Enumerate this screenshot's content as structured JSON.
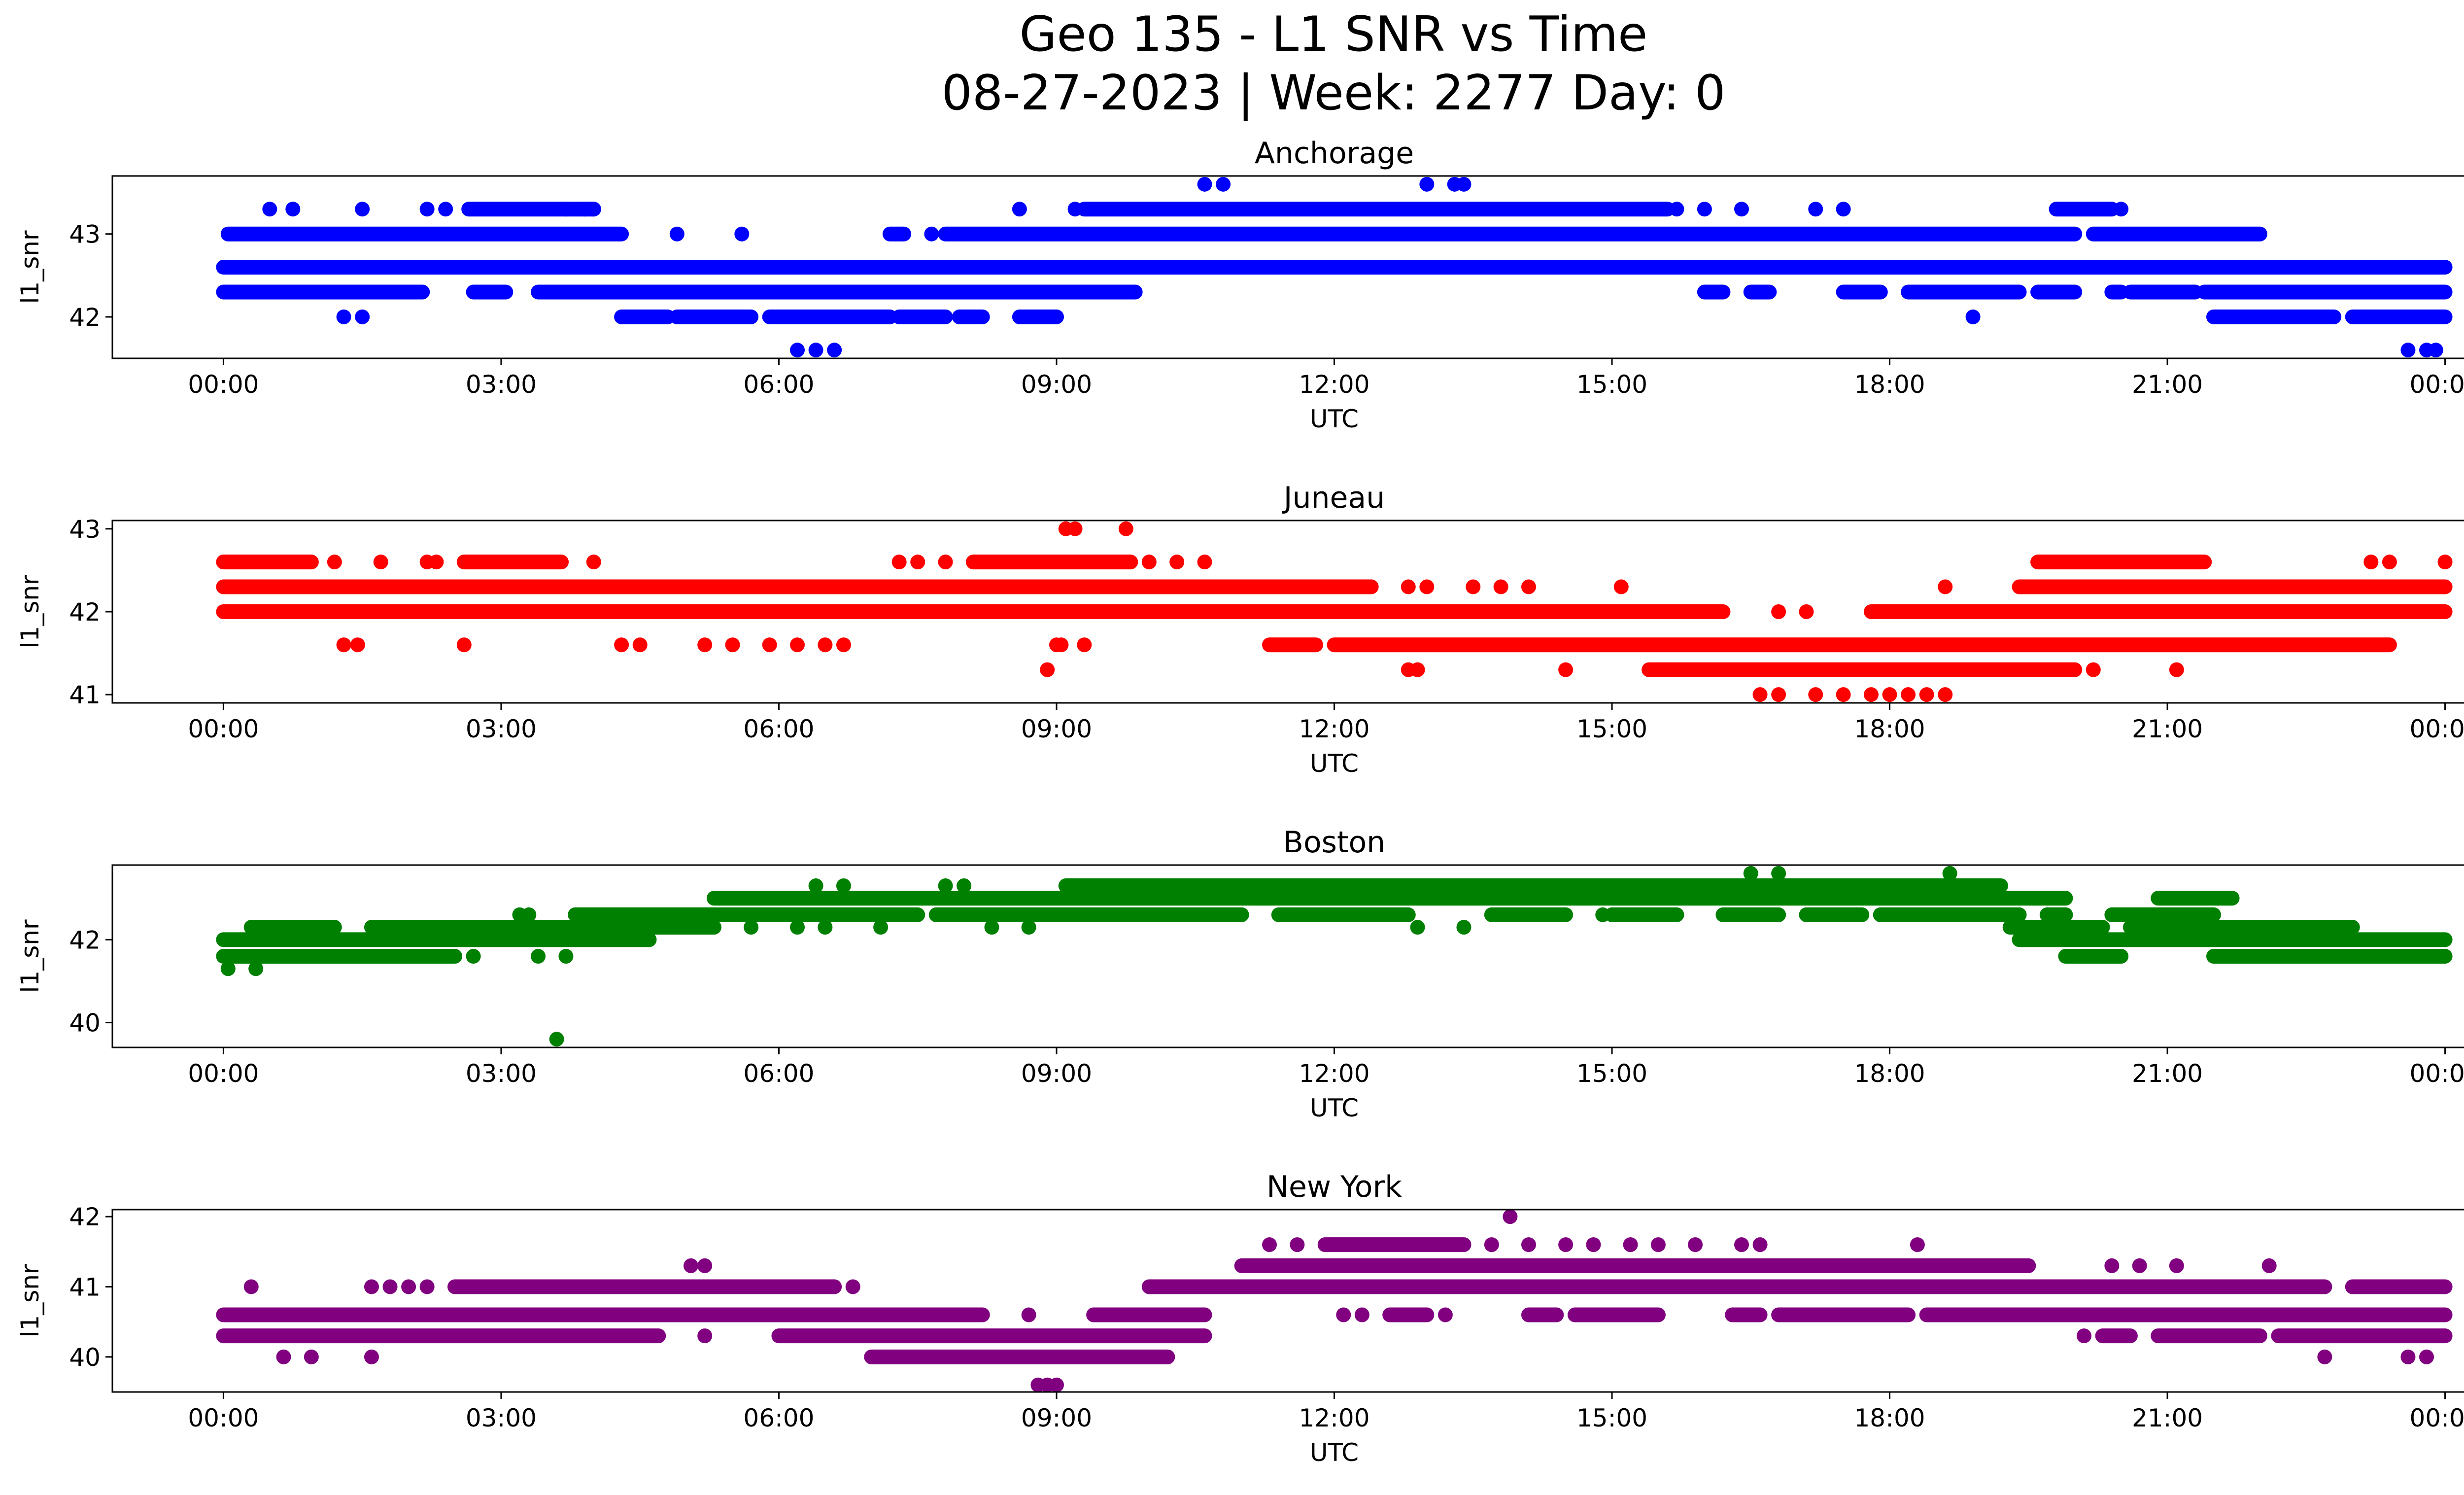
{
  "figure": {
    "title_line1": "Geo 135 - L1 SNR vs Time",
    "title_line2": "08-27-2023 | Week: 2277 Day: 0"
  },
  "chart_data": [
    {
      "type": "scatter",
      "title": "Anchorage",
      "xlabel": "UTC",
      "ylabel": "l1_snr",
      "color": "#0000ff",
      "x_unit": "hours",
      "xlim": [
        -1.2,
        25.2
      ],
      "ylim": [
        41.5,
        43.7
      ],
      "xticks": [
        "00:00",
        "03:00",
        "06:00",
        "09:00",
        "12:00",
        "15:00",
        "18:00",
        "21:00",
        "00:00"
      ],
      "yticks": [
        42,
        43
      ],
      "bands": [
        {
          "y": 42.3,
          "x": [
            [
              0,
              2.15
            ],
            [
              2.7,
              3.05
            ],
            [
              3.4,
              9.85
            ],
            [
              16.0,
              16.2
            ],
            [
              16.5,
              16.7
            ],
            [
              17.5,
              17.9
            ],
            [
              18.2,
              19.4
            ],
            [
              19.6,
              20.0
            ],
            [
              20.4,
              20.5
            ],
            [
              20.6,
              21.3
            ],
            [
              21.4,
              24.0
            ]
          ]
        },
        {
          "y": 42.6,
          "x": [
            [
              0,
              24.0
            ]
          ]
        },
        {
          "y": 43.0,
          "x": [
            [
              0.05,
              4.3
            ],
            [
              7.2,
              7.35
            ],
            [
              7.8,
              20.0
            ],
            [
              20.2,
              22.0
            ]
          ]
        },
        {
          "y": 43.3,
          "x": [
            [
              2.65,
              4.0
            ],
            [
              9.3,
              15.6
            ],
            [
              19.8,
              20.4
            ]
          ]
        },
        {
          "y": 42.0,
          "x": [
            [
              4.3,
              4.8
            ],
            [
              4.9,
              5.7
            ],
            [
              5.9,
              7.2
            ],
            [
              7.3,
              7.8
            ],
            [
              7.95,
              8.2
            ],
            [
              8.6,
              9.0
            ],
            [
              21.5,
              22.8
            ],
            [
              23.0,
              24.0
            ]
          ]
        }
      ],
      "points": [
        {
          "x": 0.5,
          "y": 43.3
        },
        {
          "x": 0.75,
          "y": 43.3
        },
        {
          "x": 1.5,
          "y": 43.3
        },
        {
          "x": 2.2,
          "y": 43.3
        },
        {
          "x": 2.4,
          "y": 43.3
        },
        {
          "x": 3.7,
          "y": 43.3
        },
        {
          "x": 3.9,
          "y": 43.3
        },
        {
          "x": 4.0,
          "y": 43.3
        },
        {
          "x": 8.6,
          "y": 43.3
        },
        {
          "x": 9.2,
          "y": 43.3
        },
        {
          "x": 17.2,
          "y": 43.3
        },
        {
          "x": 17.5,
          "y": 43.3
        },
        {
          "x": 20.5,
          "y": 43.3
        },
        {
          "x": 16.0,
          "y": 43.3
        },
        {
          "x": 16.4,
          "y": 43.3
        },
        {
          "x": 10.6,
          "y": 43.6
        },
        {
          "x": 10.8,
          "y": 43.6
        },
        {
          "x": 13.0,
          "y": 43.6
        },
        {
          "x": 13.3,
          "y": 43.6
        },
        {
          "x": 13.4,
          "y": 43.6
        },
        {
          "x": 1.3,
          "y": 42.0
        },
        {
          "x": 1.5,
          "y": 42.0
        },
        {
          "x": 18.9,
          "y": 42.0
        },
        {
          "x": 6.2,
          "y": 41.6
        },
        {
          "x": 6.4,
          "y": 41.6
        },
        {
          "x": 6.6,
          "y": 41.6
        },
        {
          "x": 23.6,
          "y": 41.6
        },
        {
          "x": 23.8,
          "y": 41.6
        },
        {
          "x": 23.9,
          "y": 41.6
        },
        {
          "x": 4.9,
          "y": 43.0
        },
        {
          "x": 5.6,
          "y": 43.0
        },
        {
          "x": 7.65,
          "y": 43.0
        },
        {
          "x": 15.7,
          "y": 43.3
        },
        {
          "x": 23.2,
          "y": 42.6
        },
        {
          "x": 23.4,
          "y": 42.6
        }
      ]
    },
    {
      "type": "scatter",
      "title": "Juneau",
      "xlabel": "UTC",
      "ylabel": "l1_snr",
      "color": "#ff0000",
      "x_unit": "hours",
      "xlim": [
        -1.2,
        25.2
      ],
      "ylim": [
        40.9,
        43.1
      ],
      "xticks": [
        "00:00",
        "03:00",
        "06:00",
        "09:00",
        "12:00",
        "15:00",
        "18:00",
        "21:00",
        "00:00"
      ],
      "yticks": [
        41,
        42,
        43
      ],
      "bands": [
        {
          "y": 42.3,
          "x": [
            [
              0,
              12.4
            ],
            [
              19.4,
              24.0
            ]
          ]
        },
        {
          "y": 42.0,
          "x": [
            [
              0,
              16.2
            ],
            [
              17.8,
              24.0
            ]
          ]
        },
        {
          "y": 41.6,
          "x": [
            [
              11.3,
              11.8
            ],
            [
              12.0,
              23.4
            ]
          ]
        },
        {
          "y": 41.3,
          "x": [
            [
              15.4,
              20.0
            ]
          ]
        },
        {
          "y": 42.6,
          "x": [
            [
              0,
              0.95
            ],
            [
              2.6,
              3.65
            ],
            [
              8.1,
              9.8
            ],
            [
              19.6,
              21.4
            ]
          ]
        }
      ],
      "points": [
        {
          "x": 0.2,
          "y": 42.6
        },
        {
          "x": 1.7,
          "y": 42.6
        },
        {
          "x": 2.2,
          "y": 42.6
        },
        {
          "x": 2.3,
          "y": 42.6
        },
        {
          "x": 4.0,
          "y": 42.6
        },
        {
          "x": 7.3,
          "y": 42.6
        },
        {
          "x": 7.5,
          "y": 42.6
        },
        {
          "x": 7.8,
          "y": 42.6
        },
        {
          "x": 10.0,
          "y": 42.6
        },
        {
          "x": 10.3,
          "y": 42.6
        },
        {
          "x": 10.6,
          "y": 42.6
        },
        {
          "x": 23.2,
          "y": 42.6
        },
        {
          "x": 23.4,
          "y": 42.6
        },
        {
          "x": 24.0,
          "y": 42.6
        },
        {
          "x": 1.2,
          "y": 42.6
        },
        {
          "x": 9.1,
          "y": 43.0
        },
        {
          "x": 9.2,
          "y": 43.0
        },
        {
          "x": 9.75,
          "y": 43.0
        },
        {
          "x": 1.3,
          "y": 41.6
        },
        {
          "x": 1.45,
          "y": 41.6
        },
        {
          "x": 2.6,
          "y": 41.6
        },
        {
          "x": 4.3,
          "y": 41.6
        },
        {
          "x": 4.5,
          "y": 41.6
        },
        {
          "x": 5.2,
          "y": 41.6
        },
        {
          "x": 5.5,
          "y": 41.6
        },
        {
          "x": 5.9,
          "y": 41.6
        },
        {
          "x": 6.2,
          "y": 41.6
        },
        {
          "x": 6.5,
          "y": 41.6
        },
        {
          "x": 6.7,
          "y": 41.6
        },
        {
          "x": 9.05,
          "y": 41.6
        },
        {
          "x": 9.3,
          "y": 41.6
        },
        {
          "x": 8.9,
          "y": 41.3
        },
        {
          "x": 9.0,
          "y": 41.6
        },
        {
          "x": 12.8,
          "y": 42.3
        },
        {
          "x": 13.0,
          "y": 42.3
        },
        {
          "x": 13.5,
          "y": 42.3
        },
        {
          "x": 13.8,
          "y": 42.3
        },
        {
          "x": 14.1,
          "y": 42.3
        },
        {
          "x": 15.1,
          "y": 42.3
        },
        {
          "x": 18.6,
          "y": 42.3
        },
        {
          "x": 12.8,
          "y": 41.3
        },
        {
          "x": 12.9,
          "y": 41.3
        },
        {
          "x": 14.5,
          "y": 41.3
        },
        {
          "x": 20.2,
          "y": 41.3
        },
        {
          "x": 21.1,
          "y": 41.3
        },
        {
          "x": 16.6,
          "y": 41.0
        },
        {
          "x": 16.8,
          "y": 41.0
        },
        {
          "x": 17.2,
          "y": 41.0
        },
        {
          "x": 17.5,
          "y": 41.0
        },
        {
          "x": 17.8,
          "y": 41.0
        },
        {
          "x": 18.0,
          "y": 41.0
        },
        {
          "x": 18.2,
          "y": 41.0
        },
        {
          "x": 18.4,
          "y": 41.0
        },
        {
          "x": 18.6,
          "y": 41.0
        },
        {
          "x": 16.8,
          "y": 42.0
        },
        {
          "x": 17.1,
          "y": 42.0
        }
      ]
    },
    {
      "type": "scatter",
      "title": "Boston",
      "xlabel": "UTC",
      "ylabel": "l1_snr",
      "color": "#008000",
      "x_unit": "hours",
      "xlim": [
        -1.2,
        25.2
      ],
      "ylim": [
        39.4,
        43.8
      ],
      "xticks": [
        "00:00",
        "03:00",
        "06:00",
        "09:00",
        "12:00",
        "15:00",
        "18:00",
        "21:00",
        "00:00"
      ],
      "yticks": [
        40,
        42
      ],
      "bands": [
        {
          "y": 42.0,
          "x": [
            [
              0,
              4.6
            ],
            [
              19.4,
              24.0
            ]
          ]
        },
        {
          "y": 41.6,
          "x": [
            [
              0,
              2.5
            ],
            [
              19.9,
              20.5
            ],
            [
              21.5,
              24.0
            ]
          ]
        },
        {
          "y": 42.3,
          "x": [
            [
              0.3,
              1.2
            ],
            [
              1.6,
              5.3
            ],
            [
              19.3,
              20.3
            ],
            [
              20.6,
              23.0
            ]
          ]
        },
        {
          "y": 42.6,
          "x": [
            [
              3.8,
              7.5
            ],
            [
              7.7,
              11.0
            ],
            [
              11.4,
              12.8
            ],
            [
              13.7,
              14.5
            ],
            [
              15.0,
              15.7
            ],
            [
              16.2,
              16.8
            ],
            [
              17.1,
              17.7
            ],
            [
              17.9,
              19.4
            ],
            [
              19.7,
              19.9
            ],
            [
              20.4,
              21.5
            ]
          ]
        },
        {
          "y": 43.0,
          "x": [
            [
              5.3,
              19.9
            ],
            [
              20.9,
              21.7
            ]
          ]
        },
        {
          "y": 43.3,
          "x": [
            [
              9.1,
              19.2
            ]
          ]
        }
      ],
      "points": [
        {
          "x": 0.05,
          "y": 41.3
        },
        {
          "x": 0.35,
          "y": 41.3
        },
        {
          "x": 3.6,
          "y": 39.6
        },
        {
          "x": 3.4,
          "y": 41.6
        },
        {
          "x": 3.7,
          "y": 41.6
        },
        {
          "x": 2.7,
          "y": 41.6
        },
        {
          "x": 3.2,
          "y": 42.6
        },
        {
          "x": 3.3,
          "y": 42.6
        },
        {
          "x": 6.2,
          "y": 42.3
        },
        {
          "x": 6.5,
          "y": 42.3
        },
        {
          "x": 5.7,
          "y": 42.3
        },
        {
          "x": 7.1,
          "y": 42.3
        },
        {
          "x": 8.3,
          "y": 42.3
        },
        {
          "x": 8.7,
          "y": 42.3
        },
        {
          "x": 12.9,
          "y": 42.3
        },
        {
          "x": 13.4,
          "y": 42.3
        },
        {
          "x": 6.4,
          "y": 43.3
        },
        {
          "x": 6.7,
          "y": 43.3
        },
        {
          "x": 7.8,
          "y": 43.3
        },
        {
          "x": 8.0,
          "y": 43.3
        },
        {
          "x": 16.5,
          "y": 43.6
        },
        {
          "x": 16.8,
          "y": 43.6
        },
        {
          "x": 18.65,
          "y": 43.6
        },
        {
          "x": 11.5,
          "y": 42.6
        },
        {
          "x": 14.9,
          "y": 42.6
        },
        {
          "x": 19.6,
          "y": 42.3
        }
      ]
    },
    {
      "type": "scatter",
      "title": "New York",
      "xlabel": "UTC",
      "ylabel": "l1_snr",
      "color": "#800080",
      "x_unit": "hours",
      "xlim": [
        -1.2,
        25.2
      ],
      "ylim": [
        39.5,
        42.1
      ],
      "xticks": [
        "00:00",
        "03:00",
        "06:00",
        "09:00",
        "12:00",
        "15:00",
        "18:00",
        "21:00",
        "00:00"
      ],
      "yticks": [
        40,
        41,
        42
      ],
      "bands": [
        {
          "y": 40.3,
          "x": [
            [
              0,
              4.7
            ],
            [
              6.0,
              10.6
            ],
            [
              20.3,
              20.6
            ],
            [
              20.9,
              22.0
            ],
            [
              22.2,
              24.0
            ]
          ]
        },
        {
          "y": 40.6,
          "x": [
            [
              0,
              8.2
            ],
            [
              9.4,
              10.6
            ],
            [
              12.6,
              13.0
            ],
            [
              14.1,
              14.4
            ],
            [
              14.6,
              15.5
            ],
            [
              16.3,
              16.6
            ],
            [
              16.8,
              18.2
            ],
            [
              18.4,
              24.0
            ]
          ]
        },
        {
          "y": 41.0,
          "x": [
            [
              2.5,
              6.6
            ],
            [
              10.0,
              22.7
            ],
            [
              23.0,
              24.0
            ]
          ]
        },
        {
          "y": 41.3,
          "x": [
            [
              11.0,
              19.5
            ]
          ]
        },
        {
          "y": 40.0,
          "x": [
            [
              7.0,
              10.2
            ]
          ]
        },
        {
          "y": 41.6,
          "x": [
            [
              11.9,
              13.4
            ]
          ]
        }
      ],
      "points": [
        {
          "x": 0.3,
          "y": 41.0
        },
        {
          "x": 1.6,
          "y": 41.0
        },
        {
          "x": 1.8,
          "y": 41.0
        },
        {
          "x": 2.0,
          "y": 41.0
        },
        {
          "x": 2.2,
          "y": 41.0
        },
        {
          "x": 6.8,
          "y": 41.0
        },
        {
          "x": 0.65,
          "y": 40.0
        },
        {
          "x": 0.95,
          "y": 40.0
        },
        {
          "x": 1.6,
          "y": 40.0
        },
        {
          "x": 5.05,
          "y": 41.3
        },
        {
          "x": 5.2,
          "y": 41.3
        },
        {
          "x": 5.2,
          "y": 40.3
        },
        {
          "x": 8.7,
          "y": 40.6
        },
        {
          "x": 8.8,
          "y": 39.6
        },
        {
          "x": 8.9,
          "y": 39.6
        },
        {
          "x": 9.0,
          "y": 39.6
        },
        {
          "x": 11.3,
          "y": 41.6
        },
        {
          "x": 11.6,
          "y": 41.6
        },
        {
          "x": 13.9,
          "y": 42.0
        },
        {
          "x": 13.7,
          "y": 41.6
        },
        {
          "x": 14.1,
          "y": 41.6
        },
        {
          "x": 14.5,
          "y": 41.6
        },
        {
          "x": 14.8,
          "y": 41.6
        },
        {
          "x": 15.2,
          "y": 41.6
        },
        {
          "x": 15.5,
          "y": 41.6
        },
        {
          "x": 15.9,
          "y": 41.6
        },
        {
          "x": 16.4,
          "y": 41.6
        },
        {
          "x": 16.6,
          "y": 41.6
        },
        {
          "x": 18.3,
          "y": 41.6
        },
        {
          "x": 12.1,
          "y": 40.6
        },
        {
          "x": 12.3,
          "y": 40.6
        },
        {
          "x": 13.2,
          "y": 40.6
        },
        {
          "x": 20.1,
          "y": 40.3
        },
        {
          "x": 20.4,
          "y": 41.3
        },
        {
          "x": 20.7,
          "y": 41.3
        },
        {
          "x": 21.1,
          "y": 41.3
        },
        {
          "x": 21.4,
          "y": 41.0
        },
        {
          "x": 22.1,
          "y": 41.3
        },
        {
          "x": 22.7,
          "y": 40.0
        },
        {
          "x": 23.6,
          "y": 40.0
        },
        {
          "x": 23.8,
          "y": 40.0
        }
      ]
    }
  ]
}
